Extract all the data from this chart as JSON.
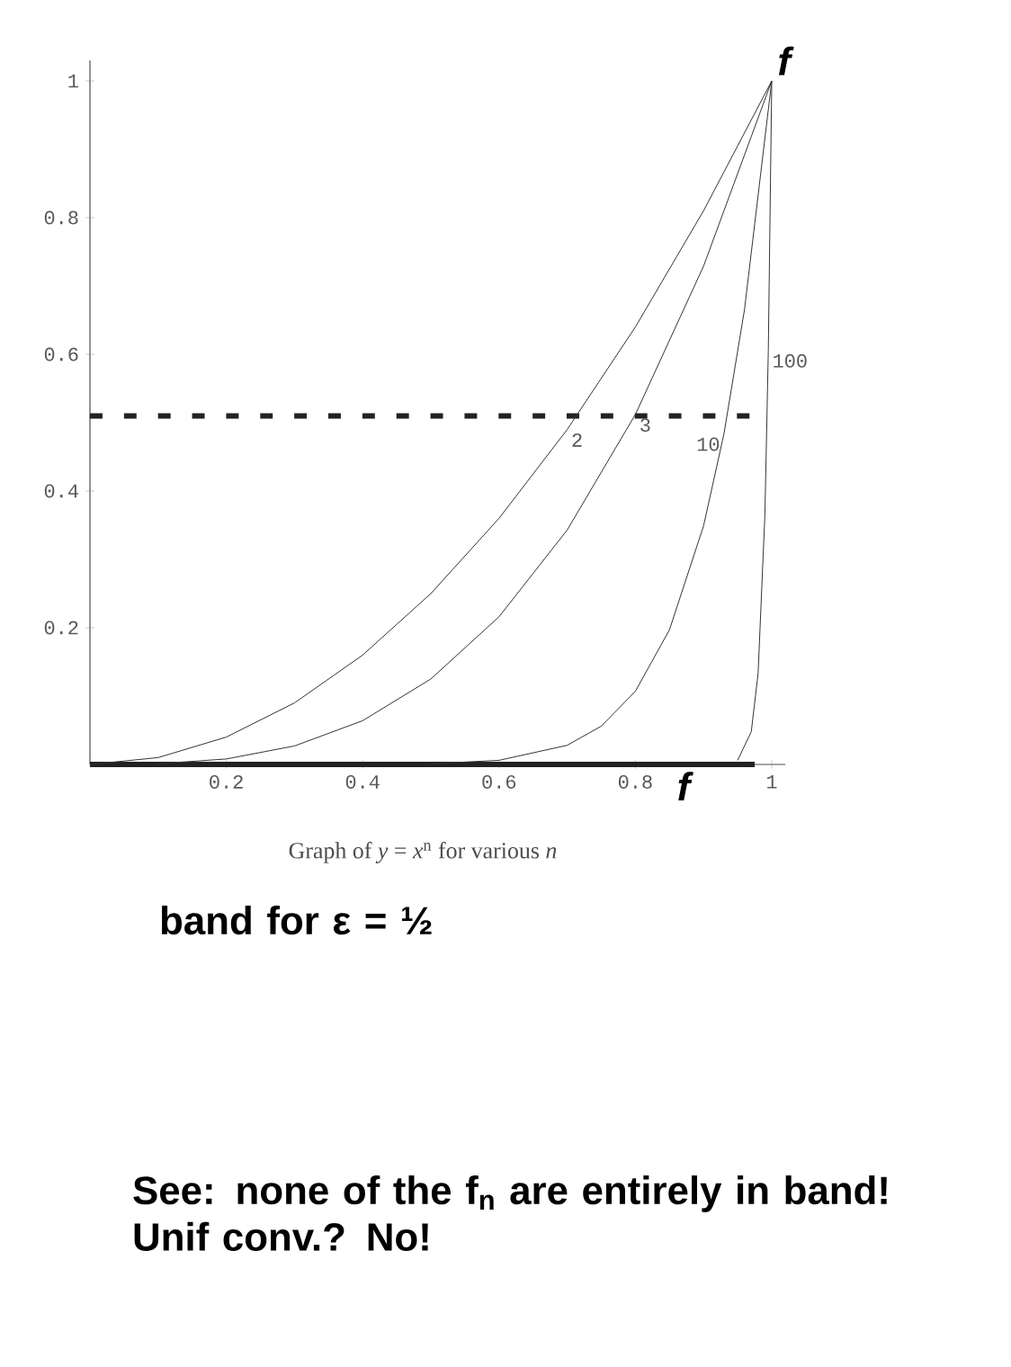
{
  "chart_data": {
    "type": "line",
    "title": "Graph of *y* = *x*$^{n}$ for various *n*",
    "xlim": [
      0,
      1.02
    ],
    "ylim": [
      0,
      1.03
    ],
    "xticks": [
      0.2,
      0.4,
      0.6,
      0.8,
      1
    ],
    "yticks": [
      0.2,
      0.4,
      0.6,
      0.8,
      1
    ],
    "series": [
      {
        "name": "2",
        "color": "#333333",
        "x": [
          0,
          0.1,
          0.2,
          0.3,
          0.4,
          0.5,
          0.6,
          0.7,
          0.8,
          0.9,
          1
        ],
        "values": [
          0,
          0.01,
          0.04,
          0.09,
          0.16,
          0.25,
          0.36,
          0.49,
          0.64,
          0.81,
          1
        ]
      },
      {
        "name": "3",
        "color": "#333333",
        "x": [
          0.1,
          0.2,
          0.3,
          0.4,
          0.5,
          0.6,
          0.7,
          0.8,
          0.9,
          1
        ],
        "values": [
          0.001,
          0.008,
          0.027,
          0.064,
          0.125,
          0.216,
          0.343,
          0.512,
          0.729,
          1
        ]
      },
      {
        "name": "10",
        "color": "#333333",
        "x": [
          0.5,
          0.6,
          0.7,
          0.75,
          0.8,
          0.85,
          0.9,
          0.93,
          0.96,
          1
        ],
        "values": [
          0.001,
          0.006,
          0.028,
          0.056,
          0.107,
          0.197,
          0.349,
          0.484,
          0.665,
          1
        ]
      },
      {
        "name": "100",
        "color": "#333333",
        "x": [
          0.95,
          0.97,
          0.98,
          0.99,
          0.995,
          1
        ],
        "values": [
          0.006,
          0.048,
          0.133,
          0.366,
          0.606,
          1
        ]
      }
    ],
    "ref_lines": [
      {
        "axis": "y",
        "value": 0,
        "color": "#222222",
        "line_style": "solid"
      },
      {
        "axis": "y",
        "value": 0.51,
        "color": "#222222",
        "line_style": "dashed"
      }
    ],
    "annotations": [
      {
        "text": "f",
        "x": 1,
        "y": 1
      },
      {
        "text": "f",
        "x": 0.85,
        "y": 0
      },
      "band for ε = ½",
      "See: none of the f$_{n}$ are entirely in band! Unif conv.? No!"
    ]
  }
}
